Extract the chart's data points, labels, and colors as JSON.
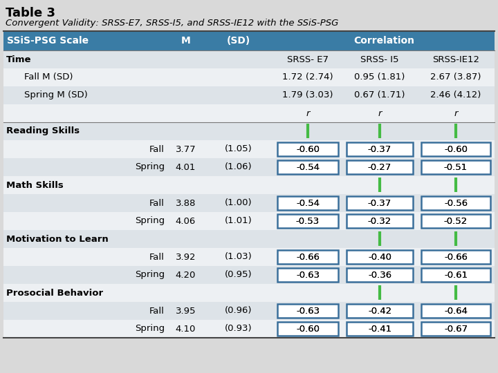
{
  "title": "Table 3",
  "subtitle": "Convergent Validity: SRSS-E7, SRSS-I5, and SRSS-IE12 with the SSiS-PSG",
  "header_bg": "#3a7ca5",
  "header_text": "#ffffff",
  "header_cols": [
    "SSiS-PSG Scale",
    "M",
    "(SD)",
    "Correlation"
  ],
  "rows": [
    {
      "label": "Time",
      "indent": 0,
      "M": "",
      "SD": "",
      "r1": "SRSS- E7",
      "r2": "SRSS- I5",
      "r3": "SRSS-IE12",
      "type": "section_time"
    },
    {
      "label": "Fall M (SD)",
      "indent": 1,
      "M": "",
      "SD": "",
      "r1": "1.72 (2.74)",
      "r2": "0.95 (1.81)",
      "r3": "2.67 (3.87)",
      "type": "time_data"
    },
    {
      "label": "Spring M (SD)",
      "indent": 1,
      "M": "",
      "SD": "",
      "r1": "1.79 (3.03)",
      "r2": "0.67 (1.71)",
      "r3": "2.46 (4.12)",
      "type": "time_data"
    },
    {
      "label": "",
      "indent": 0,
      "M": "",
      "SD": "",
      "r1": "r",
      "r2": "r",
      "r3": "r",
      "type": "r_row"
    },
    {
      "label": "Reading Skills",
      "indent": 0,
      "M": "",
      "SD": "",
      "r1": "",
      "r2": "",
      "r3": "",
      "type": "section"
    },
    {
      "label": "Fall",
      "indent": 2,
      "M": "3.77",
      "SD": "(1.05)",
      "r1": "-0.60",
      "r2": "-0.37",
      "r3": "-0.60",
      "type": "data"
    },
    {
      "label": "Spring",
      "indent": 2,
      "M": "4.01",
      "SD": "(1.06)",
      "r1": "-0.54",
      "r2": "-0.27",
      "r3": "-0.51",
      "type": "data"
    },
    {
      "label": "Math Skills",
      "indent": 0,
      "M": "",
      "SD": "",
      "r1": "",
      "r2": "",
      "r3": "",
      "type": "section"
    },
    {
      "label": "Fall",
      "indent": 2,
      "M": "3.88",
      "SD": "(1.00)",
      "r1": "-0.54",
      "r2": "-0.37",
      "r3": "-0.56",
      "type": "data"
    },
    {
      "label": "Spring",
      "indent": 2,
      "M": "4.06",
      "SD": "(1.01)",
      "r1": "-0.53",
      "r2": "-0.32",
      "r3": "-0.52",
      "type": "data"
    },
    {
      "label": "Motivation to Learn",
      "indent": 0,
      "M": "",
      "SD": "",
      "r1": "",
      "r2": "",
      "r3": "",
      "type": "section"
    },
    {
      "label": "Fall",
      "indent": 2,
      "M": "3.92",
      "SD": "(1.03)",
      "r1": "-0.66",
      "r2": "-0.40",
      "r3": "-0.66",
      "type": "data"
    },
    {
      "label": "Spring",
      "indent": 2,
      "M": "4.20",
      "SD": "(0.95)",
      "r1": "-0.63",
      "r2": "-0.36",
      "r3": "-0.61",
      "type": "data"
    },
    {
      "label": "Prosocial Behavior",
      "indent": 0,
      "M": "",
      "SD": "",
      "r1": "",
      "r2": "",
      "r3": "",
      "type": "section"
    },
    {
      "label": "Fall",
      "indent": 2,
      "M": "3.95",
      "SD": "(0.96)",
      "r1": "-0.63",
      "r2": "-0.42",
      "r3": "-0.64",
      "type": "data"
    },
    {
      "label": "Spring",
      "indent": 2,
      "M": "4.10",
      "SD": "(0.93)",
      "r1": "-0.60",
      "r2": "-0.41",
      "r3": "-0.67",
      "type": "data"
    }
  ],
  "bg_alt0": "#dde3e8",
  "bg_alt1": "#edf0f3",
  "cell_border": "#3a6f9a",
  "green_bar": "#44bb44",
  "font_size": 9.5,
  "title_font_size": 13,
  "subtitle_font_size": 9.5
}
